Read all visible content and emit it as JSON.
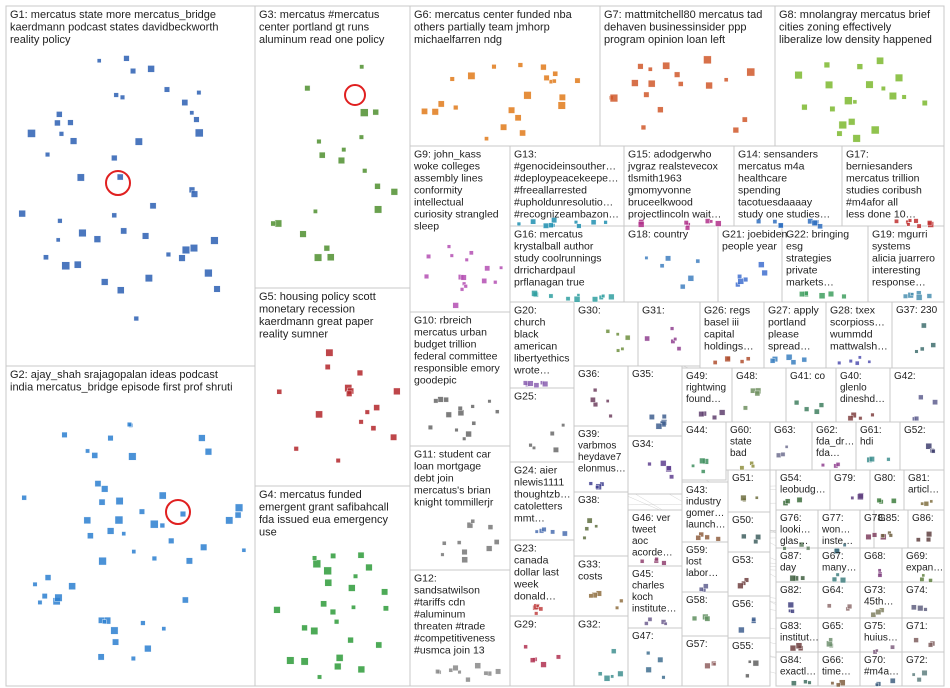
{
  "groups": [
    {
      "id": "G1",
      "lines": [
        "G1: mercatus state more mercatus_bridge",
        "kaerdmann podcast states davidbeckworth",
        "reality policy"
      ],
      "color": "#2b5fb3",
      "density": 48
    },
    {
      "id": "G2",
      "lines": [
        "G2: ajay_shah srajagopalan ideas podcast",
        "india mercatus_bridge episode first prof shruti"
      ],
      "color": "#2b7fd0",
      "density": 52
    },
    {
      "id": "G3",
      "lines": [
        "G3: mercatus #mercatus",
        "center portland gt runs",
        "aluminum read one policy"
      ],
      "color": "#4f8f2f",
      "density": 20
    },
    {
      "id": "G4",
      "lines": [
        "G4: mercatus funded",
        "emergent grant safibahcall",
        "fda issued eua emergency",
        "use"
      ],
      "color": "#2e9b3a",
      "density": 26
    },
    {
      "id": "G5",
      "lines": [
        "G5: housing policy scott",
        "monetary recession",
        "kaerdmann great paper",
        "reality sumner"
      ],
      "color": "#b3262a",
      "density": 16
    },
    {
      "id": "G6",
      "lines": [
        "G6: mercatus center funded nba",
        "others partially team jmhorp",
        "michaelfarren ndg"
      ],
      "color": "#e07a1a",
      "density": 22
    },
    {
      "id": "G7",
      "lines": [
        "G7: mattmitchell80 mercatus tad",
        "dehaven businessinsider ppp",
        "program opinion loan left"
      ],
      "color": "#d0582a",
      "density": 18
    },
    {
      "id": "G8",
      "lines": [
        "G8: mnolangray mercatus brief",
        "cities zoning effectively",
        "liberalize low density happened"
      ],
      "color": "#7cb82f",
      "density": 20
    },
    {
      "id": "G9",
      "lines": [
        "G9: john_kass",
        "woke colleges",
        "assembly lines",
        "conformity",
        "intellectual",
        "curiosity strangled",
        "sleep"
      ],
      "color": "#b44fb3",
      "density": 16
    },
    {
      "id": "G10",
      "lines": [
        "G10: rbreich",
        "mercatus urban",
        "budget trillion",
        "federal committee",
        "responsible emory",
        "goodepic"
      ],
      "color": "#666666",
      "density": 14
    },
    {
      "id": "G11",
      "lines": [
        "G11: student car",
        "loan mortgage",
        "debt join",
        "mercatus's brian",
        "knight tommillerjr"
      ],
      "color": "#777777",
      "density": 10
    },
    {
      "id": "G12",
      "lines": [
        "G12:",
        "sandsatwilson",
        "#tariffs cdn",
        "#aluminum",
        "threaten #trade",
        "#competitiveness",
        "#usmca join 13"
      ],
      "color": "#888888",
      "density": 10
    },
    {
      "id": "G13",
      "lines": [
        "G13:",
        "#genocideinsouther…",
        "#deploypeacekeepe…",
        "#freeallarrested",
        "#upholdunresolutio…",
        "#recognizeambazon…"
      ],
      "color": "#1f8fb0",
      "density": 10
    },
    {
      "id": "G14",
      "lines": [
        "G14: sensanders",
        "mercatus m4a",
        "healthcare",
        "spending",
        "tacotuesdaaaay",
        "study one studies…"
      ],
      "color": "#2f6fc0",
      "density": 8
    },
    {
      "id": "G15",
      "lines": [
        "G15: adodgerwho",
        "jvgraz realstevecox",
        "tlsmith1963",
        "gmomyvonne",
        "bruceelkwood",
        "projectlincoln wait…"
      ],
      "color": "#b0308a",
      "density": 8
    },
    {
      "id": "G16",
      "lines": [
        "G16: mercatus",
        "krystalball author",
        "study coolrunnings",
        "drrichardpaul",
        "prflanagan true"
      ],
      "color": "#2f9fa0",
      "density": 10
    },
    {
      "id": "G17",
      "lines": [
        "G17:",
        "berniesanders",
        "mercatus trillion",
        "studies coribush",
        "#m4afor all",
        "less done 10…"
      ],
      "color": "#c03030",
      "density": 8
    },
    {
      "id": "G18",
      "lines": [
        "G18: country"
      ],
      "color": "#3f7fbf",
      "density": 6
    },
    {
      "id": "G19",
      "lines": [
        "G19: mgurri",
        "systems",
        "alicia juarrero",
        "interesting",
        "response…"
      ],
      "color": "#4a8fb0",
      "density": 6
    },
    {
      "id": "G20",
      "lines": [
        "G20:",
        "church",
        "black",
        "american",
        "libertyethics",
        "wrote…"
      ],
      "color": "#8a5fb0",
      "density": 6
    },
    {
      "id": "G21",
      "lines": [
        "G21: joebiden",
        "people year"
      ],
      "color": "#3f6fcf",
      "density": 6
    },
    {
      "id": "G22",
      "lines": [
        "G22: bringing",
        "esg",
        "strategies",
        "private",
        "markets…"
      ],
      "color": "#3f9f5f",
      "density": 6
    },
    {
      "id": "G23",
      "lines": [
        "G23:",
        "canada",
        "dollar last",
        "week",
        "donald…"
      ],
      "color": "#c04040",
      "density": 5
    },
    {
      "id": "G24",
      "lines": [
        "G24: aier",
        "nlewis1111",
        "thoughtzb…",
        "catoletters",
        "mmt…"
      ],
      "color": "#4a6fb0",
      "density": 5
    },
    {
      "id": "G25",
      "lines": [
        "G25:"
      ],
      "color": "#6a6a6a",
      "density": 5
    },
    {
      "id": "G26",
      "lines": [
        "G26: regs",
        "basel iii",
        "capital",
        "holdings…"
      ],
      "color": "#b05030",
      "density": 5
    },
    {
      "id": "G27",
      "lines": [
        "G27: apply",
        "portland",
        "please",
        "spread…"
      ],
      "color": "#3a7fc0",
      "density": 5
    },
    {
      "id": "G28",
      "lines": [
        "G28: txex",
        "scorpioss…",
        "wummdd",
        "mattwalsh…"
      ],
      "color": "#4f4fb0",
      "density": 5
    },
    {
      "id": "G29",
      "lines": [
        "G29:"
      ],
      "color": "#b03050",
      "density": 5
    },
    {
      "id": "G30",
      "lines": [
        "G30:"
      ],
      "color": "#6f8f3f",
      "density": 5
    },
    {
      "id": "G31",
      "lines": [
        "G31:"
      ],
      "color": "#8f3f8f",
      "density": 5
    },
    {
      "id": "G32",
      "lines": [
        "G32:"
      ],
      "color": "#3f8f8f",
      "density": 5
    },
    {
      "id": "G33",
      "lines": [
        "G33:",
        "costs"
      ],
      "color": "#8f6f3f",
      "density": 5
    },
    {
      "id": "G34",
      "lines": [
        "G34:"
      ],
      "color": "#5f3f8f",
      "density": 5
    },
    {
      "id": "G35",
      "lines": [
        "G35:"
      ],
      "color": "#3f5f8f",
      "density": 5
    },
    {
      "id": "G36",
      "lines": [
        "G36:"
      ],
      "color": "#6f3f5f",
      "density": 5
    },
    {
      "id": "G37",
      "lines": [
        "G37: 230"
      ],
      "color": "#3f6f6f",
      "density": 4
    },
    {
      "id": "G38",
      "lines": [
        "G38:"
      ],
      "color": "#5f6f3f",
      "density": 4
    },
    {
      "id": "G39",
      "lines": [
        "G39:",
        "varbmos",
        "heydave7",
        "elonmus…"
      ],
      "color": "#3f3f8f",
      "density": 4
    },
    {
      "id": "G40",
      "lines": [
        "G40:",
        "glenlo",
        "dineshd…"
      ],
      "color": "#7f3f3f",
      "density": 4
    },
    {
      "id": "G41",
      "lines": [
        "G41: co"
      ],
      "color": "#3f7f5f",
      "density": 4
    },
    {
      "id": "G42",
      "lines": [
        "G42:"
      ],
      "color": "#5f5f8f",
      "density": 4
    },
    {
      "id": "G43",
      "lines": [
        "G43:",
        "industry",
        "gomer…",
        "launch…"
      ],
      "color": "#8f5f3f",
      "density": 4
    },
    {
      "id": "G44",
      "lines": [
        "G44:"
      ],
      "color": "#3f8f5f",
      "density": 4
    },
    {
      "id": "G45",
      "lines": [
        "G45:",
        "charles",
        "koch",
        "institute…"
      ],
      "color": "#6f5f8f",
      "density": 4
    },
    {
      "id": "G46",
      "lines": [
        "G46: ver",
        "tweet",
        "aoc",
        "acorde…"
      ],
      "color": "#8f3f6f",
      "density": 4
    },
    {
      "id": "G47",
      "lines": [
        "G47:"
      ],
      "color": "#3f6f8f",
      "density": 4
    },
    {
      "id": "G48",
      "lines": [
        "G48:"
      ],
      "color": "#6f8f5f",
      "density": 4
    },
    {
      "id": "G49",
      "lines": [
        "G49:",
        "rightwing",
        "found…"
      ],
      "color": "#5f3f6f",
      "density": 4
    },
    {
      "id": "G50",
      "lines": [
        "G50:"
      ],
      "color": "#3f5f5f",
      "density": 3
    },
    {
      "id": "G51",
      "lines": [
        "G51:"
      ],
      "color": "#6f6f3f",
      "density": 3
    },
    {
      "id": "G52",
      "lines": [
        "G52:"
      ],
      "color": "#3f3f6f",
      "density": 3
    },
    {
      "id": "G53",
      "lines": [
        "G53:"
      ],
      "color": "#6f3f3f",
      "density": 3
    },
    {
      "id": "G54",
      "lines": [
        "G54:",
        "leobudg…"
      ],
      "color": "#3f6f3f",
      "density": 3
    },
    {
      "id": "G55",
      "lines": [
        "G55:"
      ],
      "color": "#5f5f5f",
      "density": 3
    },
    {
      "id": "G56",
      "lines": [
        "G56:"
      ],
      "color": "#3f5f8f",
      "density": 3
    },
    {
      "id": "G57",
      "lines": [
        "G57:"
      ],
      "color": "#8f5f5f",
      "density": 3
    },
    {
      "id": "G58",
      "lines": [
        "G58:"
      ],
      "color": "#5f8f5f",
      "density": 3
    },
    {
      "id": "G59",
      "lines": [
        "G59:",
        "lost",
        "labor…"
      ],
      "color": "#5f5f8f",
      "density": 3
    },
    {
      "id": "G60",
      "lines": [
        "G60:",
        "state",
        "bad"
      ],
      "color": "#8f8f3f",
      "density": 3
    },
    {
      "id": "G61",
      "lines": [
        "G61:",
        "hdi"
      ],
      "color": "#3f8f8f",
      "density": 3
    },
    {
      "id": "G62",
      "lines": [
        "G62:",
        "fda_dr…",
        "fda…"
      ],
      "color": "#8f3f8f",
      "density": 3
    },
    {
      "id": "G63",
      "lines": [
        "G63:"
      ],
      "color": "#6f6f8f",
      "density": 3
    },
    {
      "id": "G64",
      "lines": [
        "G64:"
      ],
      "color": "#8f6f6f",
      "density": 3
    },
    {
      "id": "G65",
      "lines": [
        "G65:"
      ],
      "color": "#6f8f6f",
      "density": 3
    },
    {
      "id": "G66",
      "lines": [
        "G66:",
        "time…"
      ],
      "color": "#7f5f3f",
      "density": 3
    },
    {
      "id": "G67",
      "lines": [
        "G67:",
        "many…"
      ],
      "color": "#3f7f7f",
      "density": 3
    },
    {
      "id": "G68",
      "lines": [
        "G68:"
      ],
      "color": "#7f3f7f",
      "density": 3
    },
    {
      "id": "G69",
      "lines": [
        "G69:",
        "expan…"
      ],
      "color": "#5f7f3f",
      "density": 3
    },
    {
      "id": "G70",
      "lines": [
        "G70:",
        "#m4a…"
      ],
      "color": "#3f5f7f",
      "density": 3
    },
    {
      "id": "G71",
      "lines": [
        "G71:"
      ],
      "color": "#7f5f5f",
      "density": 3
    },
    {
      "id": "G72",
      "lines": [
        "G72:"
      ],
      "color": "#5f7f7f",
      "density": 3
    },
    {
      "id": "G73",
      "lines": [
        "G73:",
        "45th…"
      ],
      "color": "#7f7f5f",
      "density": 3
    },
    {
      "id": "G74",
      "lines": [
        "G74:"
      ],
      "color": "#5f5f7f",
      "density": 3
    },
    {
      "id": "G75",
      "lines": [
        "G75:",
        "huius…"
      ],
      "color": "#7f5f7f",
      "density": 3
    },
    {
      "id": "G76",
      "lines": [
        "G76:",
        "looki…",
        "glas…"
      ],
      "color": "#5f7f5f",
      "density": 3
    },
    {
      "id": "G77",
      "lines": [
        "G77:",
        "won…",
        "inste…"
      ],
      "color": "#3f6f7f",
      "density": 3
    },
    {
      "id": "G78",
      "lines": [
        "G78:"
      ],
      "color": "#7f3f5f",
      "density": 3
    },
    {
      "id": "G79",
      "lines": [
        "G79:"
      ],
      "color": "#5f3f7f",
      "density": 3
    },
    {
      "id": "G80",
      "lines": [
        "G80:"
      ],
      "color": "#3f7f3f",
      "density": 3
    },
    {
      "id": "G81",
      "lines": [
        "G81:",
        "articl…"
      ],
      "color": "#7f6f3f",
      "density": 3
    },
    {
      "id": "G82",
      "lines": [
        "G82:"
      ],
      "color": "#3f3f7f",
      "density": 3
    },
    {
      "id": "G83",
      "lines": [
        "G83:",
        "institut…"
      ],
      "color": "#6f3f3f",
      "density": 3
    },
    {
      "id": "G84",
      "lines": [
        "G84:",
        "exactl…"
      ],
      "color": "#3f6f5f",
      "density": 3
    },
    {
      "id": "G85",
      "lines": [
        "G85:"
      ],
      "color": "#6f5f3f",
      "density": 3
    },
    {
      "id": "G86",
      "lines": [
        "G86:"
      ],
      "color": "#5f3f3f",
      "density": 3
    },
    {
      "id": "G87",
      "lines": [
        "G87:",
        "day"
      ],
      "color": "#3f5f3f",
      "density": 3
    }
  ]
}
